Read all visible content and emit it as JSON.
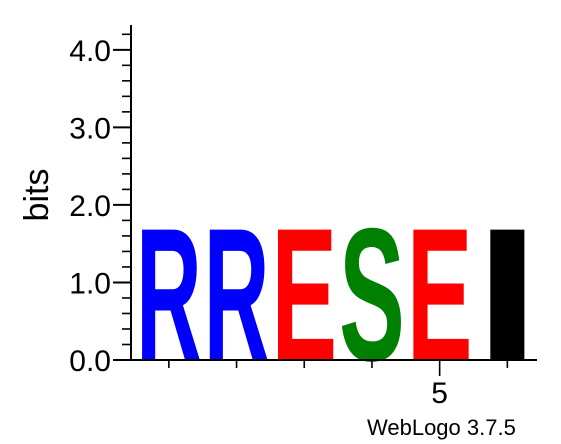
{
  "chart_data": {
    "type": "sequence-logo",
    "ylabel": "bits",
    "ylim": [
      0,
      4.32
    ],
    "y_ticks": [
      "0.0",
      "1.0",
      "2.0",
      "3.0",
      "4.0"
    ],
    "y_tick_values": [
      0,
      1,
      2,
      3,
      4
    ],
    "x_tick_labels": [
      {
        "position": 5,
        "label": "5"
      }
    ],
    "x_minor_ticks": [
      1,
      2,
      3,
      4,
      5,
      6
    ],
    "positions": [
      {
        "position": 1,
        "letter": "R",
        "height": 1.75,
        "color": "#0000ff"
      },
      {
        "position": 2,
        "letter": "R",
        "height": 1.75,
        "color": "#0000ff"
      },
      {
        "position": 3,
        "letter": "E",
        "height": 1.75,
        "color": "#ff0000"
      },
      {
        "position": 4,
        "letter": "S",
        "height": 1.75,
        "color": "#008000"
      },
      {
        "position": 5,
        "letter": "E",
        "height": 1.75,
        "color": "#ff0000"
      },
      {
        "position": 6,
        "letter": "I",
        "height": 1.75,
        "color": "#000000"
      }
    ]
  },
  "credit": "WebLogo 3.7.5"
}
